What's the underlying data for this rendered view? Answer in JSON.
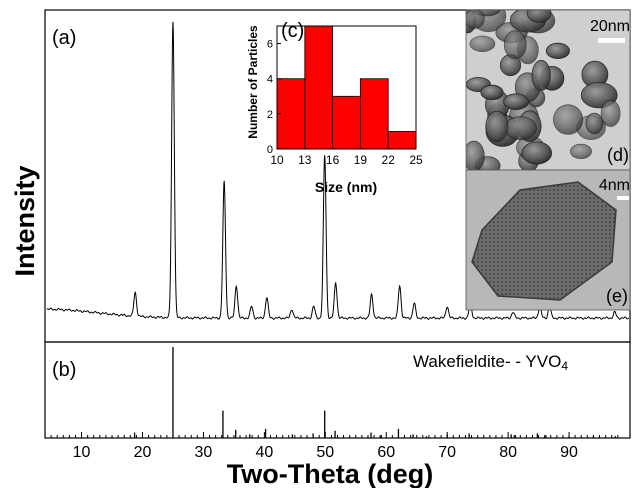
{
  "chart_data": [
    {
      "type": "line",
      "panel_label": "(a)",
      "ylabel": "Intensity",
      "xlabel": "Two-Theta (deg)",
      "xlim": [
        4,
        100
      ],
      "x_ticks": [
        10,
        20,
        30,
        40,
        50,
        60,
        70,
        80,
        90
      ],
      "baseline": 2,
      "peaks": [
        {
          "x": 18.8,
          "h": 8
        },
        {
          "x": 25.0,
          "h": 100
        },
        {
          "x": 33.4,
          "h": 46
        },
        {
          "x": 35.4,
          "h": 11
        },
        {
          "x": 37.9,
          "h": 4
        },
        {
          "x": 40.4,
          "h": 7
        },
        {
          "x": 44.5,
          "h": 3
        },
        {
          "x": 48.1,
          "h": 4
        },
        {
          "x": 49.9,
          "h": 55
        },
        {
          "x": 51.7,
          "h": 12
        },
        {
          "x": 57.6,
          "h": 8
        },
        {
          "x": 62.2,
          "h": 11
        },
        {
          "x": 64.6,
          "h": 5
        },
        {
          "x": 70.0,
          "h": 4
        },
        {
          "x": 73.8,
          "h": 5
        },
        {
          "x": 80.8,
          "h": 2
        },
        {
          "x": 85.2,
          "h": 4
        },
        {
          "x": 86.8,
          "h": 4
        },
        {
          "x": 97.5,
          "h": 2
        }
      ]
    },
    {
      "type": "bar",
      "panel_label": "(b)",
      "reference_label_main": "Wakefieldite- - YVO",
      "reference_label_sub": "4",
      "sticks": [
        {
          "x": 18.7,
          "h": 6
        },
        {
          "x": 25.0,
          "h": 100
        },
        {
          "x": 33.2,
          "h": 30
        },
        {
          "x": 35.3,
          "h": 9
        },
        {
          "x": 37.6,
          "h": 4
        },
        {
          "x": 40.2,
          "h": 10
        },
        {
          "x": 44.6,
          "h": 4
        },
        {
          "x": 48.0,
          "h": 5
        },
        {
          "x": 49.9,
          "h": 30
        },
        {
          "x": 51.6,
          "h": 8
        },
        {
          "x": 57.5,
          "h": 6
        },
        {
          "x": 59.2,
          "h": 3
        },
        {
          "x": 62.0,
          "h": 10
        },
        {
          "x": 64.4,
          "h": 4
        },
        {
          "x": 66.6,
          "h": 2
        },
        {
          "x": 70.0,
          "h": 4
        },
        {
          "x": 73.6,
          "h": 5
        },
        {
          "x": 80.5,
          "h": 4
        },
        {
          "x": 81.2,
          "h": 3
        },
        {
          "x": 84.8,
          "h": 5
        },
        {
          "x": 86.2,
          "h": 3
        },
        {
          "x": 90.0,
          "h": 2
        },
        {
          "x": 94.0,
          "h": 2
        },
        {
          "x": 97.6,
          "h": 2
        }
      ]
    },
    {
      "type": "bar",
      "panel_label": "(c)",
      "xlabel": "Size (nm)",
      "ylabel": "Number of Particles",
      "bin_edges": [
        10,
        13,
        16,
        19,
        22,
        25
      ],
      "x_tick_labels": [
        "10",
        "13",
        "16",
        "19",
        "22",
        "25"
      ],
      "values": [
        4,
        7,
        3,
        4,
        1
      ],
      "ylim": [
        0,
        7
      ],
      "y_ticks": [
        0,
        2,
        4,
        6
      ],
      "bar_color": "#ff0000"
    }
  ],
  "insets": {
    "d": {
      "label": "(d)",
      "scale_text": "20nm"
    },
    "e": {
      "label": "(e)",
      "scale_text": "4nm"
    }
  }
}
